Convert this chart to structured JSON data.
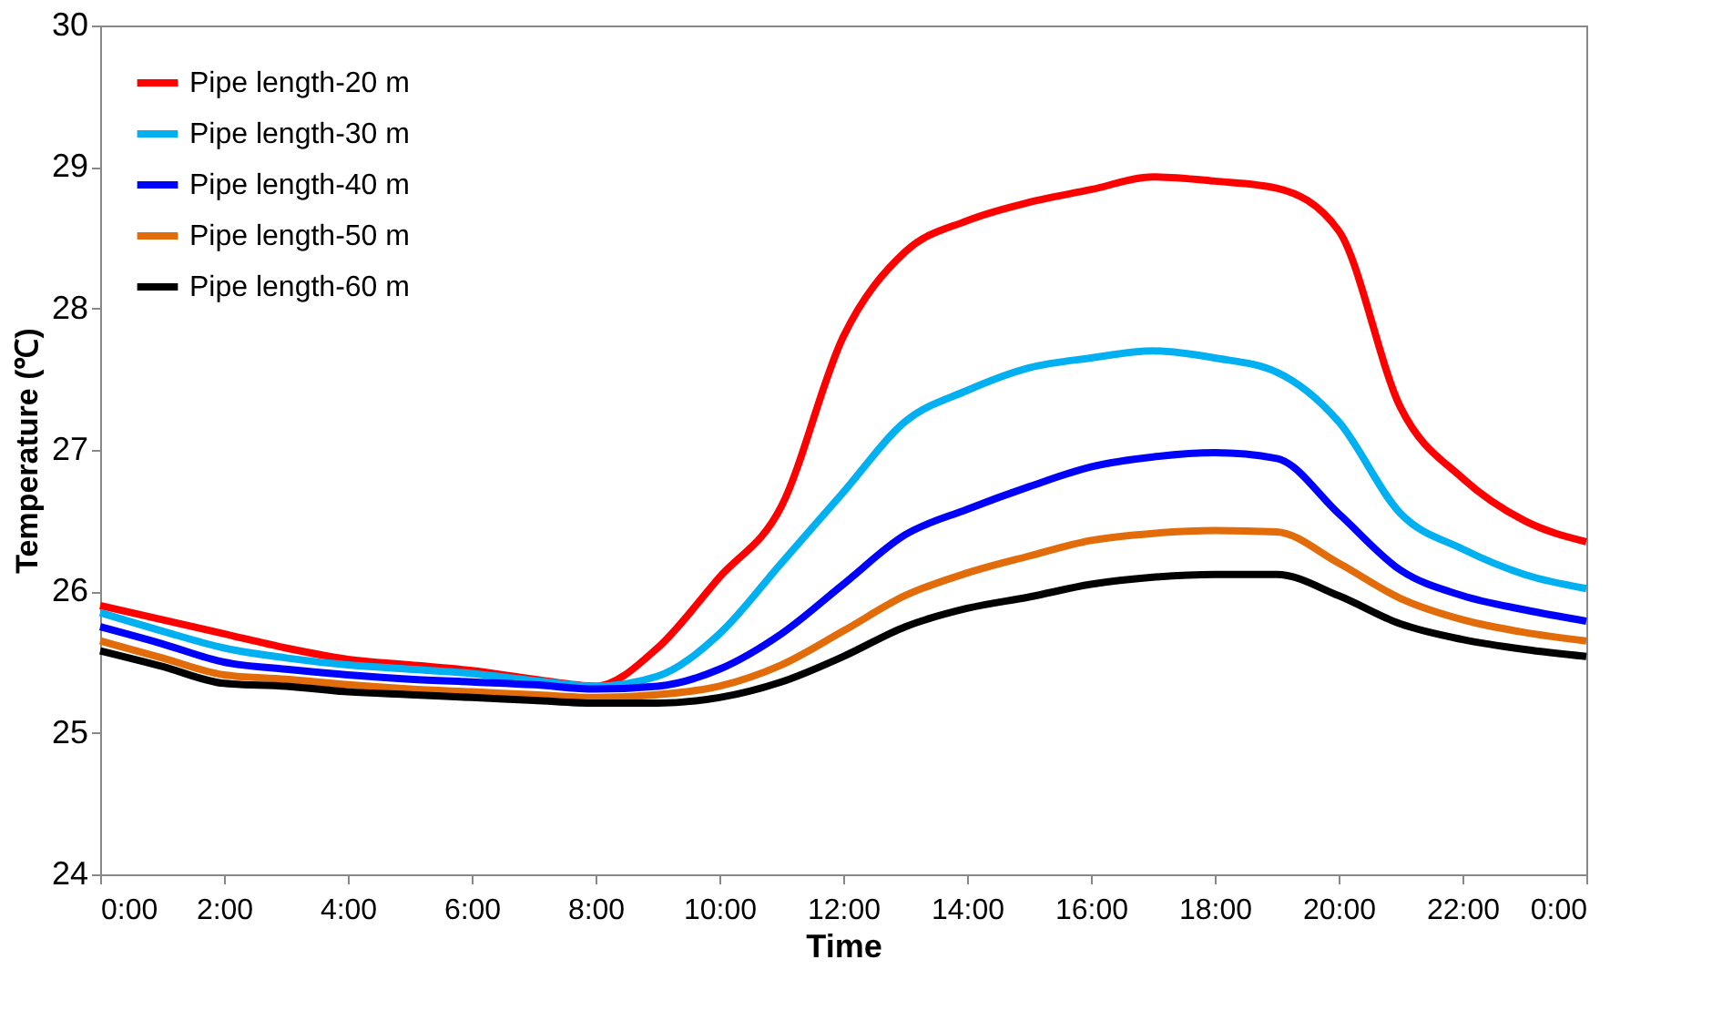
{
  "chart_data": {
    "type": "line",
    "xlabel": "Time",
    "ylabel": "Temperature (℃)",
    "x": [
      0,
      1,
      2,
      3,
      4,
      5,
      6,
      7,
      8,
      9,
      10,
      11,
      12,
      13,
      14,
      15,
      16,
      17,
      18,
      19,
      20,
      21,
      22,
      23,
      24
    ],
    "series": [
      {
        "name": "Pipe length-20 m",
        "color": "#ff0000",
        "values": [
          25.9,
          25.8,
          25.7,
          25.6,
          25.52,
          25.48,
          25.44,
          25.38,
          25.33,
          25.6,
          26.1,
          26.6,
          27.8,
          28.4,
          28.62,
          28.75,
          28.84,
          28.93,
          28.9,
          28.85,
          28.55,
          27.3,
          26.8,
          26.5,
          26.35
        ]
      },
      {
        "name": "Pipe length-30 m",
        "color": "#00b0f0",
        "values": [
          25.85,
          25.72,
          25.6,
          25.53,
          25.48,
          25.45,
          25.42,
          25.37,
          25.33,
          25.4,
          25.7,
          26.2,
          26.7,
          27.2,
          27.42,
          27.58,
          27.65,
          27.7,
          27.65,
          27.55,
          27.2,
          26.55,
          26.3,
          26.12,
          26.02
        ]
      },
      {
        "name": "Pipe length-40 m",
        "color": "#0000ff",
        "values": [
          25.75,
          25.63,
          25.5,
          25.45,
          25.41,
          25.38,
          25.36,
          25.34,
          25.31,
          25.33,
          25.45,
          25.7,
          26.05,
          26.4,
          26.58,
          26.74,
          26.88,
          26.95,
          26.98,
          26.94,
          26.55,
          26.15,
          25.97,
          25.87,
          25.79
        ]
      },
      {
        "name": "Pipe length-50 m",
        "color": "#e36c0a",
        "values": [
          25.65,
          25.53,
          25.41,
          25.38,
          25.34,
          25.31,
          25.29,
          25.27,
          25.25,
          25.27,
          25.33,
          25.48,
          25.72,
          25.97,
          26.13,
          26.25,
          26.36,
          26.41,
          26.43,
          26.42,
          26.2,
          25.95,
          25.8,
          25.71,
          25.65
        ]
      },
      {
        "name": "Pipe length-60 m",
        "color": "#000000",
        "values": [
          25.58,
          25.47,
          25.35,
          25.33,
          25.29,
          25.27,
          25.25,
          25.23,
          25.21,
          25.21,
          25.25,
          25.36,
          25.54,
          25.75,
          25.88,
          25.96,
          26.05,
          26.1,
          26.12,
          26.12,
          25.97,
          25.77,
          25.66,
          25.59,
          25.54
        ]
      }
    ],
    "xlim": [
      0,
      24
    ],
    "xticks": [
      {
        "value": 0,
        "label": "0:00"
      },
      {
        "value": 2,
        "label": "2:00"
      },
      {
        "value": 4,
        "label": "4:00"
      },
      {
        "value": 6,
        "label": "6:00"
      },
      {
        "value": 8,
        "label": "8:00"
      },
      {
        "value": 10,
        "label": "10:00"
      },
      {
        "value": 12,
        "label": "12:00"
      },
      {
        "value": 14,
        "label": "14:00"
      },
      {
        "value": 16,
        "label": "16:00"
      },
      {
        "value": 18,
        "label": "18:00"
      },
      {
        "value": 20,
        "label": "20:00"
      },
      {
        "value": 22,
        "label": "22:00"
      },
      {
        "value": 24,
        "label": "0:00"
      }
    ],
    "ylim": [
      24,
      30
    ],
    "yticks": [
      24,
      25,
      26,
      27,
      28,
      29,
      30
    ],
    "grid": false,
    "legend": "top left",
    "marker": "none",
    "line_style": "solid"
  }
}
